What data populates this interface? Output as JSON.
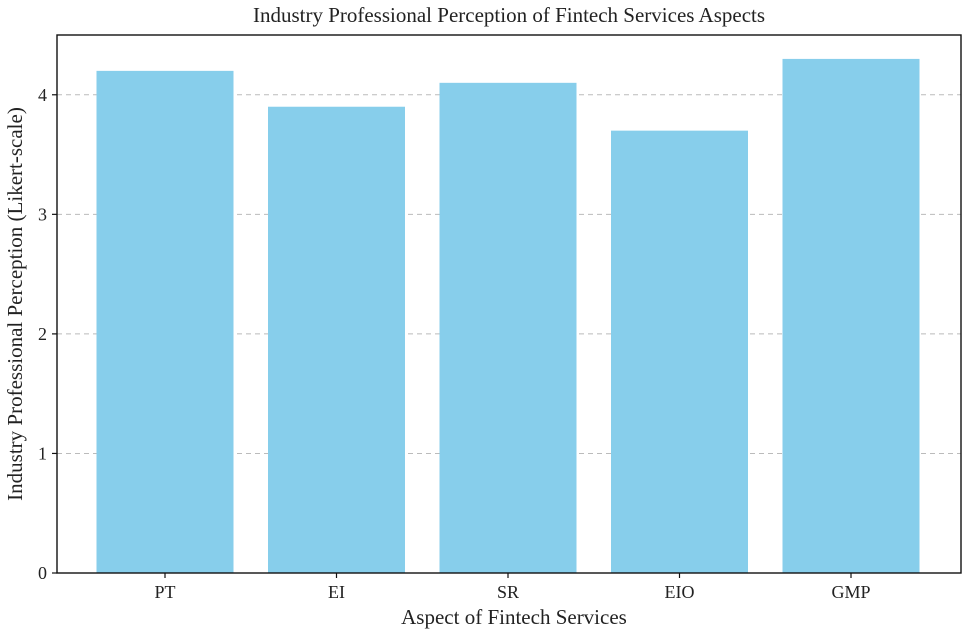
{
  "chart_data": {
    "type": "bar",
    "title": "Industry Professional Perception of Fintech Services Aspects",
    "xlabel": "Aspect of Fintech Services",
    "ylabel": "Industry Professional Perception (Likert-scale)",
    "categories": [
      "PT",
      "EI",
      "SR",
      "EIO",
      "GMP"
    ],
    "values": [
      4.2,
      3.9,
      4.1,
      3.7,
      4.3
    ],
    "ylim": [
      0,
      4.5
    ],
    "yticks": [
      0,
      1,
      2,
      3,
      4
    ],
    "grid": true,
    "grid_axis": "y",
    "legend": "none",
    "colors": {
      "bar": "#87ceeb",
      "grid": "#bbbbbb",
      "axis": "#111111"
    }
  }
}
